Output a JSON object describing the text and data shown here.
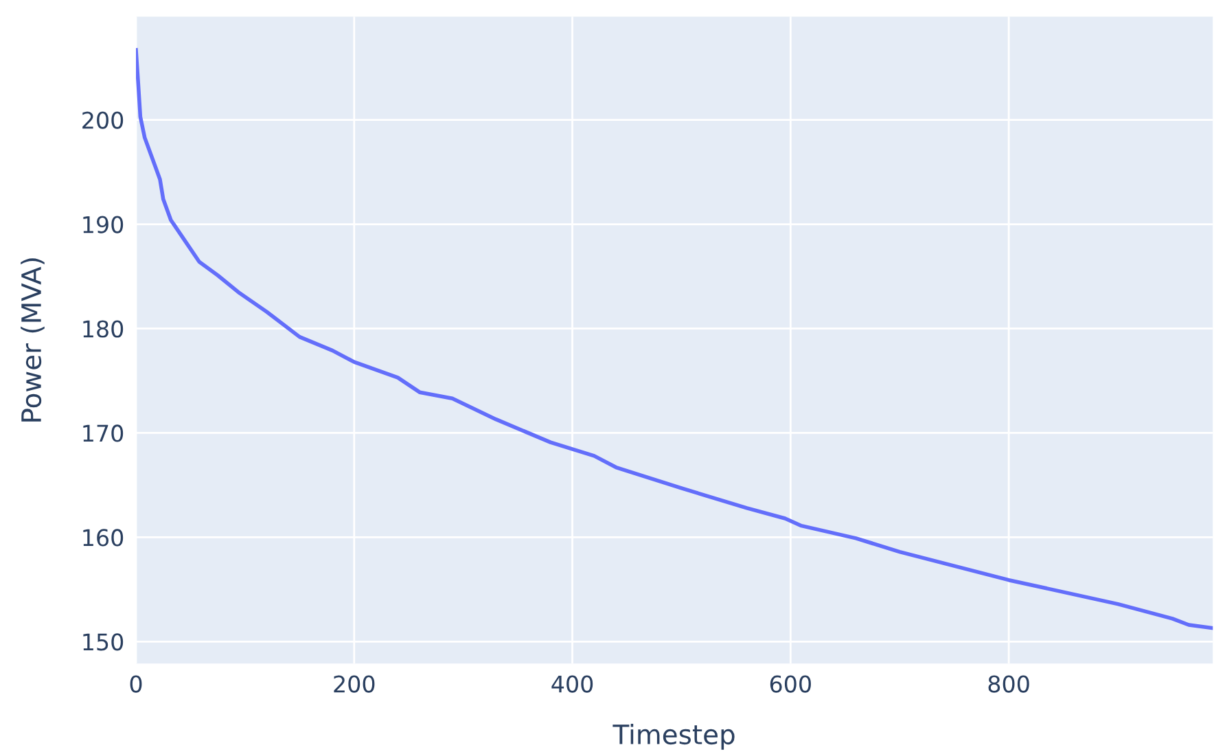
{
  "chart_data": {
    "type": "line",
    "xlabel": "Timestep",
    "ylabel": "Power (MVA)",
    "xlim": [
      0,
      987
    ],
    "ylim": [
      147.9,
      209.9
    ],
    "xticks": [
      0,
      200,
      400,
      600,
      800
    ],
    "yticks": [
      150,
      160,
      170,
      180,
      190,
      200
    ],
    "grid": true,
    "marker": "none",
    "line_style": "solid",
    "series": [
      {
        "color": "#636efa",
        "x": [
          0,
          2,
          4,
          8,
          15,
          22,
          25,
          32,
          45,
          58,
          75,
          95,
          120,
          150,
          180,
          200,
          240,
          260,
          290,
          330,
          380,
          420,
          440,
          500,
          560,
          595,
          610,
          660,
          700,
          800,
          900,
          950,
          965,
          987
        ],
        "values": [
          206.7,
          203.6,
          200.3,
          198.3,
          196.3,
          194.3,
          192.4,
          190.4,
          188.4,
          186.4,
          185.1,
          183.4,
          181.6,
          179.2,
          177.9,
          176.8,
          175.3,
          173.9,
          173.3,
          171.3,
          169.1,
          167.8,
          166.7,
          164.7,
          162.8,
          161.8,
          161.1,
          159.9,
          158.6,
          155.9,
          153.6,
          152.2,
          151.6,
          151.3
        ]
      }
    ]
  }
}
